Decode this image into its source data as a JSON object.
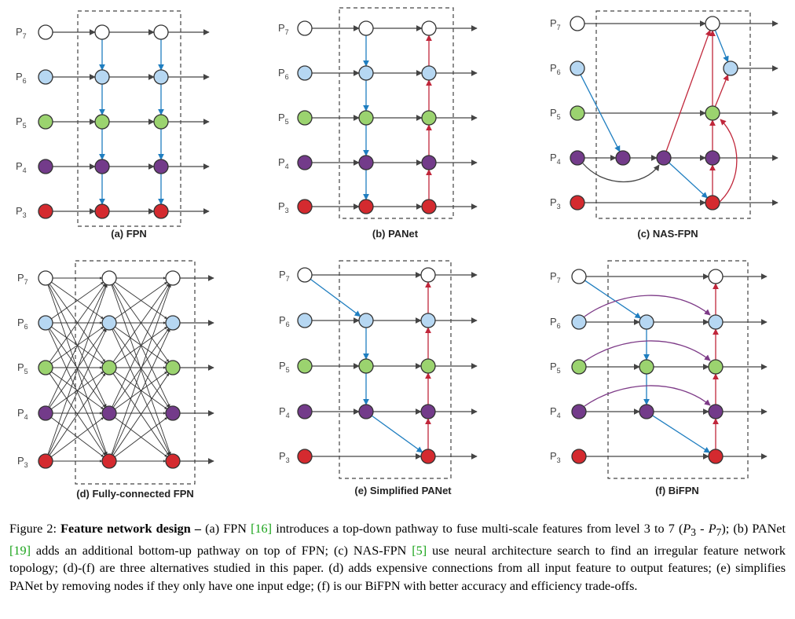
{
  "panels": [
    {
      "id": "fpn",
      "label": "(a) FPN"
    },
    {
      "id": "panet",
      "label": "(b) PANet"
    },
    {
      "id": "nasfpn",
      "label": "(c) NAS-FPN"
    },
    {
      "id": "fc",
      "label": "(d) Fully-connected FPN"
    },
    {
      "id": "simplified",
      "label": "(e) Simplified PANet"
    },
    {
      "id": "bifpn",
      "label": "(f) BiFPN"
    }
  ],
  "levels": [
    {
      "name": "P",
      "sub": "7",
      "color": "#ffffff"
    },
    {
      "name": "P",
      "sub": "6",
      "color": "#b6d7f2"
    },
    {
      "name": "P",
      "sub": "5",
      "color": "#9bd36f"
    },
    {
      "name": "P",
      "sub": "4",
      "color": "#733b8a"
    },
    {
      "name": "P",
      "sub": "3",
      "color": "#d42a2f"
    }
  ],
  "colors": {
    "top_down": "#1f7ec0",
    "bottom_up": "#c0263a",
    "skip": "#7d3a87",
    "lateral": "#444444"
  },
  "caption": {
    "fig": "Figure 2: ",
    "title": "Feature network design –",
    "p1": " (a) FPN ",
    "r1": "[16]",
    "p2": " introduces a top-down pathway to fuse multi-scale features from level 3 to 7 (",
    "m1": "P",
    "m1s": "3",
    "m2": " - ",
    "m3": "P",
    "m3s": "7",
    "p3": "); (b) PANet ",
    "r2": "[19]",
    "p4": " adds an additional bottom-up pathway on top of FPN; (c) NAS-FPN ",
    "r3": "[5]",
    "p5": " use neural architecture search to find an irregular feature network topology; (d)-(f) are three alternatives studied in this paper. (d) adds expensive connections from all input feature to output features; (e) simplifies PANet by removing nodes if they only have one input edge; (f) is our BiFPN with better accuracy and efficiency trade-offs."
  }
}
